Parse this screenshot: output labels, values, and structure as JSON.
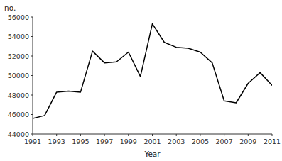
{
  "chart_data": {
    "type": "line",
    "x": [
      1991,
      1992,
      1993,
      1994,
      1995,
      1996,
      1997,
      1998,
      1999,
      2000,
      2001,
      2002,
      2003,
      2004,
      2005,
      2006,
      2007,
      2008,
      2009,
      2010,
      2011
    ],
    "values": [
      45600,
      45900,
      48300,
      48400,
      48300,
      52500,
      51300,
      51400,
      52400,
      49900,
      55300,
      53400,
      52900,
      52800,
      52400,
      51300,
      47400,
      47200,
      49200,
      50300,
      49000
    ],
    "color": "#000000",
    "xlabel": "Year",
    "ylabel": "no.",
    "xlim": [
      1991,
      2011
    ],
    "ylim": [
      44000,
      56000
    ],
    "xticks": [
      1991,
      1993,
      1995,
      1997,
      1999,
      2001,
      2003,
      2005,
      2007,
      2009,
      2011
    ],
    "yticks": [
      44000,
      46000,
      48000,
      50000,
      52000,
      54000,
      56000
    ],
    "grid": false
  }
}
